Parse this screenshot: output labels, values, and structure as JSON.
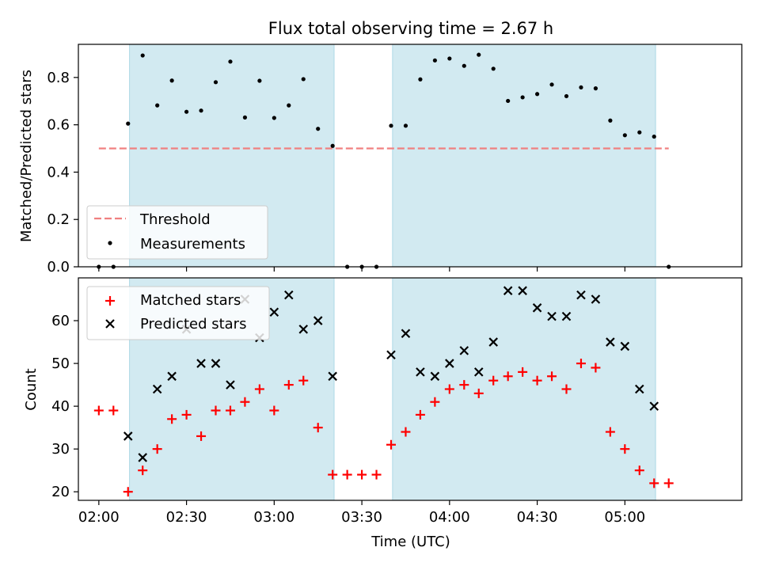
{
  "title": "Flux total observing time = 2.67 h",
  "colors": {
    "shade": "#add8e6",
    "threshold": "#f08080",
    "measurement": "#000000",
    "matched": "#ff0000",
    "predicted": "#000000"
  },
  "chart_data": [
    {
      "type": "scatter",
      "ylabel": "Matched/Predicted stars",
      "ylim": [
        0,
        0.94
      ],
      "yticks": [
        "0.0",
        "0.2",
        "0.4",
        "0.6",
        "0.8"
      ],
      "xlim": [
        "01:53",
        "05:40"
      ],
      "x_tick_labels_visible": false,
      "shaded_intervals": [
        [
          "02:10:30",
          "03:20:30"
        ],
        [
          "03:40:30",
          "05:10:30"
        ]
      ],
      "threshold": {
        "name": "Threshold",
        "value": 0.5,
        "x_range": [
          "02:00",
          "05:15"
        ],
        "style": "dashed"
      },
      "legend": {
        "position": "lower-left",
        "entries": [
          "Threshold",
          "Measurements"
        ]
      },
      "series": [
        {
          "name": "Measurements",
          "marker": "dot",
          "x": [
            "02:00",
            "02:05",
            "02:10",
            "02:15",
            "02:20",
            "02:25",
            "02:30",
            "02:35",
            "02:40",
            "02:45",
            "02:50",
            "02:55",
            "03:00",
            "03:05",
            "03:10",
            "03:15",
            "03:20",
            "03:25",
            "03:30",
            "03:35",
            "03:40",
            "03:45",
            "03:50",
            "03:55",
            "04:00",
            "04:05",
            "04:10",
            "04:15",
            "04:20",
            "04:25",
            "04:30",
            "04:35",
            "04:40",
            "04:45",
            "04:50",
            "04:55",
            "05:00",
            "05:05",
            "05:10",
            "05:15"
          ],
          "y": [
            0,
            0,
            0.605,
            0.893,
            0.682,
            0.787,
            0.655,
            0.66,
            0.78,
            0.867,
            0.631,
            0.786,
            0.629,
            0.682,
            0.793,
            0.583,
            0.511,
            0,
            0,
            0,
            0.596,
            0.596,
            0.792,
            0.872,
            0.88,
            0.849,
            0.896,
            0.837,
            0.701,
            0.716,
            0.73,
            0.77,
            0.721,
            0.758,
            0.754,
            0.618,
            0.556,
            0.568,
            0.55,
            0
          ]
        }
      ]
    },
    {
      "type": "scatter",
      "xlabel": "Time (UTC)",
      "ylabel": "Count",
      "ylim": [
        18,
        70
      ],
      "yticks": [
        "20",
        "30",
        "40",
        "50",
        "60"
      ],
      "xlim": [
        "01:53",
        "05:40"
      ],
      "xticks": [
        "02:00",
        "02:30",
        "03:00",
        "03:30",
        "04:00",
        "04:30",
        "05:00"
      ],
      "shaded_intervals": [
        [
          "02:10:30",
          "03:20:30"
        ],
        [
          "03:40:30",
          "05:10:30"
        ]
      ],
      "legend": {
        "position": "upper-left",
        "entries": [
          "Matched stars",
          "Predicted stars"
        ]
      },
      "series": [
        {
          "name": "Matched stars",
          "marker": "plus",
          "x": [
            "02:00",
            "02:05",
            "02:10",
            "02:15",
            "02:20",
            "02:25",
            "02:30",
            "02:35",
            "02:40",
            "02:45",
            "02:50",
            "02:55",
            "03:00",
            "03:05",
            "03:10",
            "03:15",
            "03:20",
            "03:25",
            "03:30",
            "03:35",
            "03:40",
            "03:45",
            "03:50",
            "03:55",
            "04:00",
            "04:05",
            "04:10",
            "04:15",
            "04:20",
            "04:25",
            "04:30",
            "04:35",
            "04:40",
            "04:45",
            "04:50",
            "04:55",
            "05:00",
            "05:05",
            "05:10",
            "05:15"
          ],
          "y": [
            39,
            39,
            20,
            25,
            30,
            37,
            38,
            33,
            39,
            39,
            41,
            44,
            39,
            45,
            46,
            35,
            24,
            24,
            24,
            24,
            31,
            34,
            38,
            41,
            44,
            45,
            43,
            46,
            47,
            48,
            46,
            47,
            44,
            50,
            49,
            34,
            30,
            25,
            22,
            22
          ]
        },
        {
          "name": "Predicted stars",
          "marker": "x",
          "x": [
            "02:10",
            "02:15",
            "02:20",
            "02:25",
            "02:30",
            "02:35",
            "02:40",
            "02:45",
            "02:50",
            "02:55",
            "03:00",
            "03:05",
            "03:10",
            "03:15",
            "03:20",
            "03:40",
            "03:45",
            "03:50",
            "03:55",
            "04:00",
            "04:05",
            "04:10",
            "04:15",
            "04:20",
            "04:25",
            "04:30",
            "04:35",
            "04:40",
            "04:45",
            "04:50",
            "04:55",
            "05:00",
            "05:05",
            "05:10"
          ],
          "y": [
            33,
            28,
            44,
            47,
            58,
            50,
            50,
            45,
            65,
            56,
            62,
            66,
            58,
            60,
            47,
            52,
            57,
            48,
            47,
            50,
            53,
            48,
            55,
            67,
            67,
            63,
            61,
            61,
            66,
            65,
            55,
            54,
            44,
            40
          ]
        }
      ]
    }
  ]
}
